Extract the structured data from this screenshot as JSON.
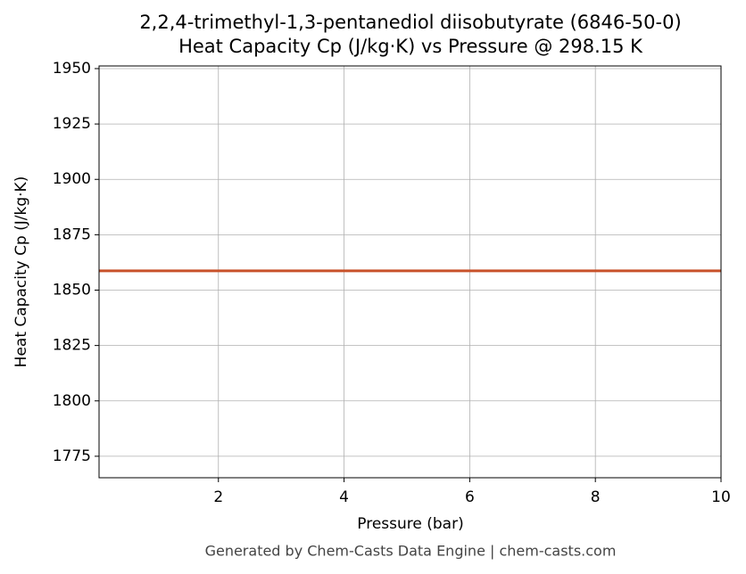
{
  "chart_data": {
    "type": "line",
    "title": "2,2,4-trimethyl-1,3-pentanediol diisobutyrate (6846-50-0)",
    "subtitle": "Heat Capacity Cp (J/kg·K) vs Pressure @ 298.15 K",
    "x_label": "Pressure (bar)",
    "y_label": "Heat Capacity Cp (J/kg·K)",
    "x": [
      0.1,
      10
    ],
    "series": [
      {
        "name": "Cp",
        "color": "#c8522a",
        "values": [
          1858.7,
          1858.7
        ]
      }
    ],
    "xlim": [
      0.1,
      10
    ],
    "xticks": [
      2,
      4,
      6,
      8,
      10
    ],
    "ylim": [
      1765.3,
      1951.2
    ],
    "yticks": [
      1775,
      1800,
      1825,
      1850,
      1875,
      1900,
      1925,
      1950
    ],
    "grid": true
  },
  "footer": "Generated by Chem-Casts Data Engine | chem-casts.com"
}
